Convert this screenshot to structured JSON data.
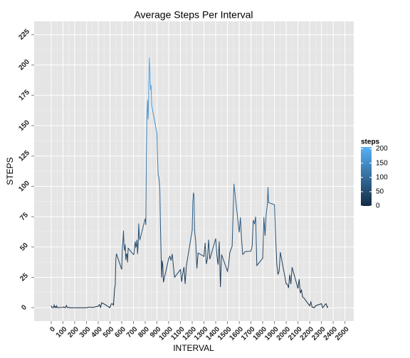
{
  "chart_data": {
    "type": "line",
    "title": "Average Steps Per Interval",
    "x_label": "INTERVAL",
    "y_label": "STEPS",
    "x": [
      0,
      5,
      10,
      15,
      20,
      25,
      30,
      35,
      40,
      45,
      50,
      55,
      100,
      105,
      110,
      115,
      120,
      125,
      130,
      135,
      140,
      145,
      150,
      155,
      200,
      230,
      300,
      330,
      345,
      400,
      410,
      420,
      430,
      440,
      450,
      500,
      510,
      520,
      530,
      540,
      545,
      550,
      555,
      600,
      605,
      610,
      615,
      620,
      625,
      630,
      635,
      640,
      645,
      650,
      655,
      700,
      705,
      710,
      715,
      720,
      725,
      730,
      735,
      740,
      745,
      750,
      755,
      800,
      805,
      810,
      815,
      820,
      825,
      830,
      835,
      840,
      845,
      850,
      855,
      900,
      905,
      910,
      915,
      920,
      925,
      930,
      935,
      940,
      945,
      950,
      955,
      1000,
      1010,
      1020,
      1030,
      1040,
      1050,
      1100,
      1110,
      1120,
      1130,
      1140,
      1150,
      1200,
      1205,
      1210,
      1215,
      1220,
      1230,
      1240,
      1250,
      1300,
      1310,
      1320,
      1330,
      1340,
      1350,
      1400,
      1410,
      1420,
      1430,
      1440,
      1450,
      1500,
      1510,
      1520,
      1530,
      1540,
      1550,
      1555,
      1600,
      1610,
      1620,
      1630,
      1640,
      1650,
      1700,
      1710,
      1720,
      1730,
      1740,
      1750,
      1800,
      1810,
      1820,
      1830,
      1840,
      1845,
      1850,
      1900,
      1910,
      1920,
      1930,
      1940,
      1950,
      2000,
      2010,
      2020,
      2030,
      2040,
      2050,
      2100,
      2110,
      2120,
      2130,
      2140,
      2150,
      2200,
      2210,
      2220,
      2230,
      2240,
      2250,
      2300,
      2310,
      2320,
      2330,
      2340,
      2350,
      2355
    ],
    "series": [
      {
        "name": "steps",
        "values": [
          1.7,
          0.3,
          0.1,
          0.2,
          0.1,
          2.1,
          0.5,
          0.9,
          0,
          1.5,
          0.3,
          0.1,
          0.3,
          0.7,
          0.2,
          0.3,
          0,
          1.1,
          1.8,
          0.2,
          0.2,
          0.4,
          0.3,
          0,
          0,
          0,
          0,
          0.6,
          0.1,
          1.2,
          2.6,
          0.3,
          4.1,
          3.5,
          3.1,
          0,
          3,
          3.3,
          2.1,
          16,
          18.3,
          39.5,
          44.5,
          31.5,
          49.3,
          53.8,
          63.5,
          50,
          47.1,
          52.2,
          39.3,
          44,
          44.2,
          37.4,
          49,
          43.8,
          44.4,
          50.5,
          54.5,
          49.9,
          50.9,
          56,
          44.3,
          52.3,
          69.5,
          57.8,
          56.2,
          73.4,
          68.2,
          129.4,
          157.5,
          171.2,
          155.4,
          177.3,
          206.2,
          195.9,
          179.6,
          183.4,
          167,
          143.5,
          124,
          109.1,
          108.1,
          103.7,
          95.97,
          66.2,
          45.2,
          24.8,
          38.8,
          35,
          21,
          40.6,
          42.4,
          38.9,
          44.3,
          34,
          25.1,
          31.4,
          21.3,
          28.4,
          33.4,
          19.6,
          34.3,
          63.9,
          87.5,
          94.8,
          92.8,
          63.4,
          54.5,
          32.4,
          45.1,
          42.3,
          53.5,
          36,
          40.5,
          56,
          40,
          57,
          43.1,
          35.5,
          54.7,
          17.1,
          43.8,
          30,
          35.5,
          45.4,
          48.1,
          50.7,
          83,
          102.1,
          62.1,
          74.5,
          56.6,
          44,
          44.7,
          46.2,
          46.6,
          50.7,
          72.2,
          68.9,
          75.1,
          34.8,
          40.7,
          74.7,
          59.3,
          77.7,
          85.3,
          99.5,
          86.6,
          84.9,
          58,
          36.1,
          27.4,
          30.2,
          45.7,
          19.6,
          19.3,
          16.3,
          27.3,
          19.5,
          33.3,
          15.9,
          23.5,
          12,
          14.6,
          8.7,
          8.1,
          1.6,
          4.8,
          0.4,
          0.4,
          0,
          1.6,
          3.3,
          0,
          1,
          2.6,
          3.3,
          0.2,
          1.1
        ]
      }
    ],
    "xlim": [
      -145,
      2575
    ],
    "xticks": [
      0,
      100,
      200,
      300,
      400,
      500,
      600,
      700,
      800,
      900,
      1000,
      1100,
      1200,
      1300,
      1400,
      1500,
      1600,
      1700,
      1800,
      1900,
      2000,
      2100,
      2200,
      2300,
      2400,
      2500
    ],
    "ylim": [
      -11,
      236
    ],
    "yticks": [
      0,
      25,
      50,
      75,
      100,
      125,
      150,
      175,
      200,
      225
    ],
    "grid": true,
    "legend": {
      "title": "steps",
      "ticks": [
        0,
        50,
        100,
        150,
        200
      ],
      "limits": [
        0,
        206.2
      ],
      "low": "#132B43",
      "high": "#56B1F7"
    }
  }
}
